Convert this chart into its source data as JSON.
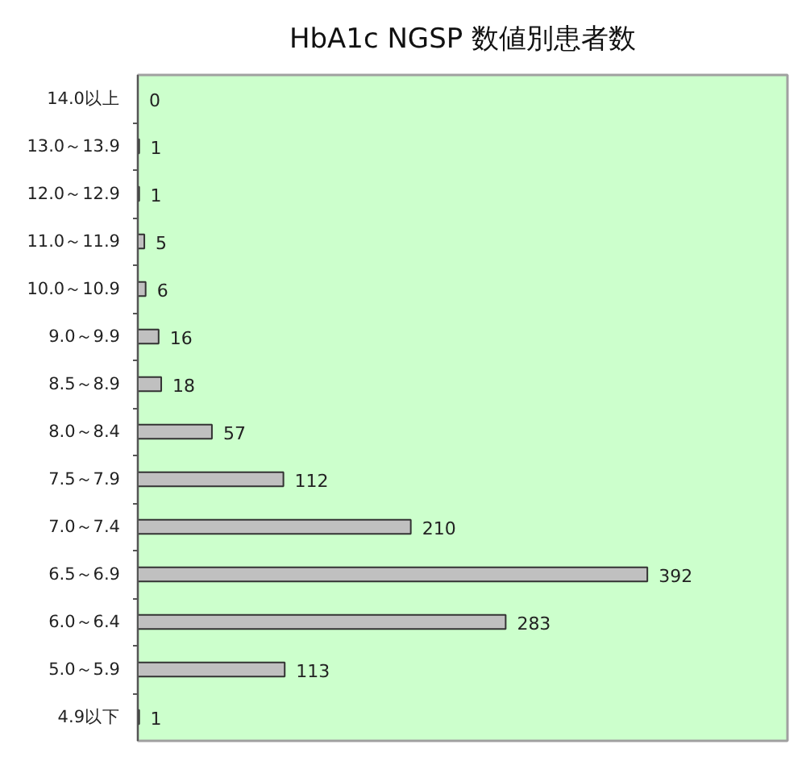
{
  "chart_data": {
    "type": "bar",
    "orientation": "horizontal",
    "title": "HbA1c NGSP 数値別患者数",
    "categories": [
      "14.0以上",
      "13.0～13.9",
      "12.0～12.9",
      "11.0～11.9",
      "10.0～10.9",
      "9.0～9.9",
      "8.5～8.9",
      "8.0～8.4",
      "7.5～7.9",
      "7.0～7.4",
      "6.5～6.9",
      "6.0～6.4",
      "5.0～5.9",
      "4.9以下"
    ],
    "values": [
      0,
      1,
      1,
      5,
      6,
      16,
      18,
      57,
      112,
      210,
      392,
      283,
      113,
      1
    ],
    "color": "#c0c0c0",
    "data_labels": true,
    "tick_labels": "y"
  }
}
